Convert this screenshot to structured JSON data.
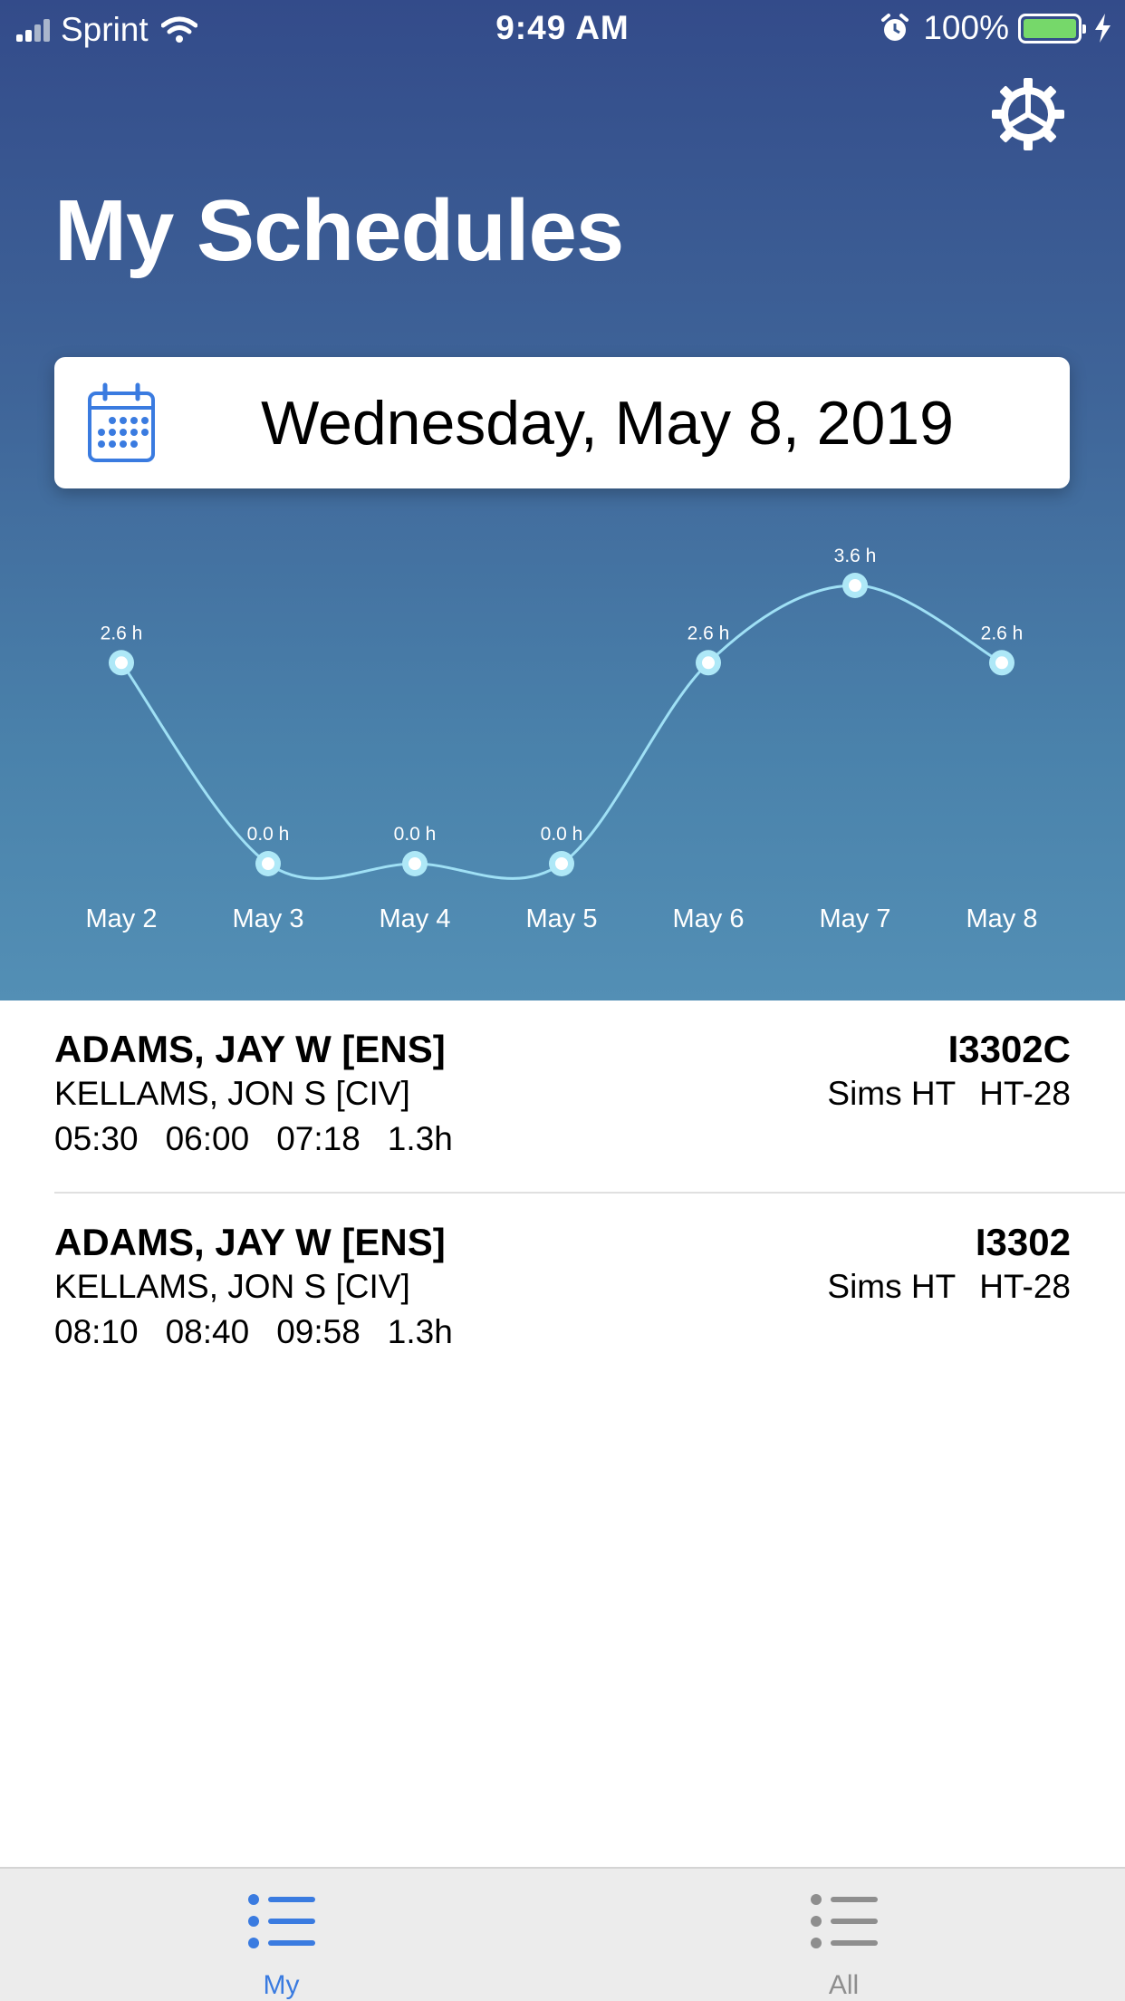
{
  "status_bar": {
    "carrier": "Sprint",
    "time": "9:49 AM",
    "battery_percent": "100%",
    "battery_level": 1.0
  },
  "header": {
    "title": "My Schedules",
    "settings_icon": "gear-icon"
  },
  "date_picker": {
    "date": "Wednesday, May 8, 2019",
    "icon": "calendar-icon"
  },
  "chart_data": {
    "type": "line",
    "categories": [
      "May 2",
      "May 3",
      "May 4",
      "May 5",
      "May 6",
      "May 7",
      "May 8"
    ],
    "values": [
      2.6,
      0.0,
      0.0,
      0.0,
      2.6,
      3.6,
      2.6
    ],
    "labels": [
      "2.6 h",
      "0.0 h",
      "0.0 h",
      "0.0 h",
      "2.6 h",
      "3.6 h",
      "2.6 h"
    ],
    "ylim": [
      0,
      3.6
    ],
    "grid": false,
    "line_color": "#9fe0f5",
    "point_color": "#aee8f7"
  },
  "schedules": [
    {
      "person": "ADAMS, JAY W [ENS]",
      "instructor": "KELLAMS, JON S [CIV]",
      "times": [
        "05:30",
        "06:00",
        "07:18",
        "1.3h"
      ],
      "event_code": "I3302C",
      "location": "Sims HT",
      "aircraft": "HT-28"
    },
    {
      "person": "ADAMS, JAY W [ENS]",
      "instructor": "KELLAMS, JON S [CIV]",
      "times": [
        "08:10",
        "08:40",
        "09:58",
        "1.3h"
      ],
      "event_code": "I3302",
      "location": "Sims HT",
      "aircraft": "HT-28"
    }
  ],
  "tab_bar": {
    "tabs": [
      {
        "label": "My",
        "icon": "list-icon",
        "active": true
      },
      {
        "label": "All",
        "icon": "list-icon",
        "active": false
      }
    ],
    "active_color": "#3a7be0",
    "inactive_color": "#8e8e8e"
  }
}
